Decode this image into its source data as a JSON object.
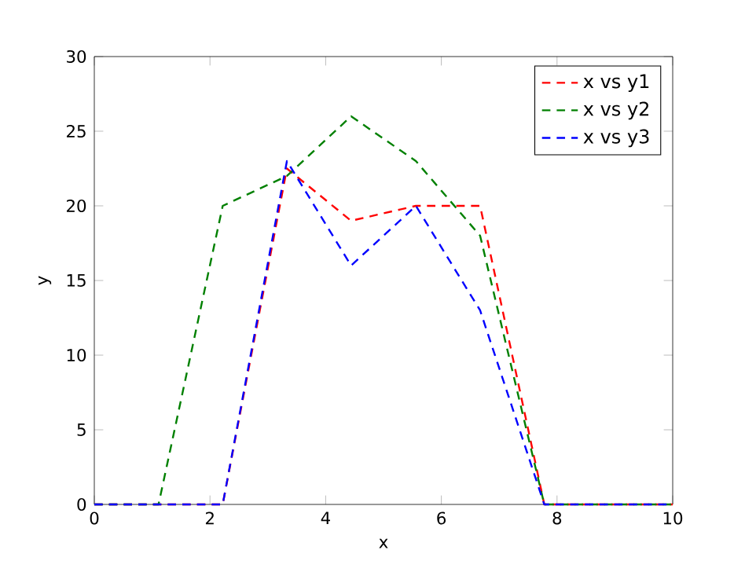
{
  "chart_data": {
    "type": "line",
    "xlabel": "x",
    "ylabel": "y",
    "x": [
      0,
      1.11,
      2.22,
      3.33,
      4.44,
      5.56,
      6.67,
      7.78,
      8.89,
      10
    ],
    "series": [
      {
        "name": "x vs y1",
        "color": "#ff0000",
        "values": [
          0,
          0,
          0,
          22.5,
          19,
          20,
          20,
          0,
          0,
          0
        ]
      },
      {
        "name": "x vs y2",
        "color": "#008000",
        "values": [
          0,
          0,
          20,
          22,
          26,
          23,
          18,
          0,
          0,
          0
        ]
      },
      {
        "name": "x vs y3",
        "color": "#0000ff",
        "values": [
          0,
          0,
          0,
          23,
          16,
          20,
          13,
          0,
          0,
          0
        ]
      }
    ],
    "xlim": [
      0,
      10
    ],
    "ylim": [
      0,
      30
    ],
    "xticks": [
      0,
      2,
      4,
      6,
      8,
      10
    ],
    "yticks": [
      0,
      5,
      10,
      15,
      20,
      25,
      30
    ],
    "legend": "top right",
    "line_style": "dashed",
    "marker": "none",
    "grid": false
  }
}
